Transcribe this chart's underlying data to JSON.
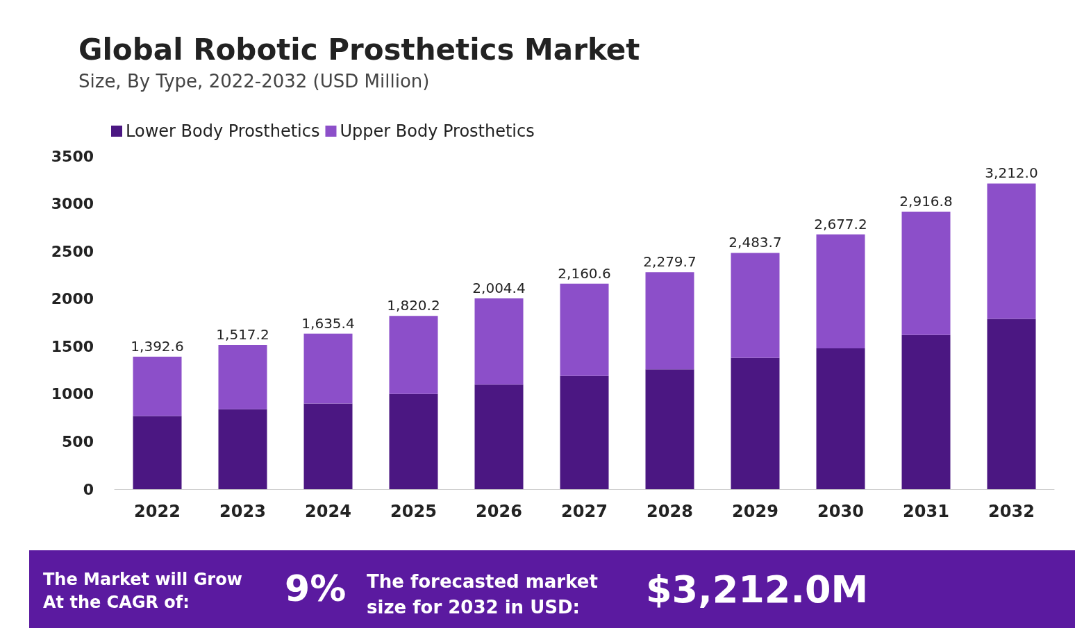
{
  "chart_data": {
    "type": "bar",
    "title": "Global Robotic Prosthetics Market",
    "subtitle": "Size, By Type, 2022-2032 (USD Million)",
    "categories": [
      "2022",
      "2023",
      "2024",
      "2025",
      "2026",
      "2027",
      "2028",
      "2029",
      "2030",
      "2031",
      "2032"
    ],
    "series": [
      {
        "name": "Lower Body Prosthetics",
        "color": "#4b1782",
        "values": [
          770,
          840,
          900,
          1000,
          1100,
          1190,
          1260,
          1380,
          1480,
          1620,
          1790
        ]
      },
      {
        "name": "Upper Body Prosthetics",
        "color": "#8c4fc9",
        "values": [
          622.6,
          677.2,
          735.4,
          820.2,
          904.4,
          970.6,
          1019.7,
          1103.7,
          1197.2,
          1296.8,
          1422.0
        ]
      }
    ],
    "stacked": true,
    "totals": [
      "1,392.6",
      "1,517.2",
      "1,635.4",
      "1,820.2",
      "2,004.4",
      "2,160.6",
      "2,279.7",
      "2,483.7",
      "2,677.2",
      "2,916.8",
      "3,212.0"
    ],
    "ylim": [
      0,
      3500
    ],
    "yticks": [
      0,
      500,
      1000,
      1500,
      2000,
      2500,
      3000,
      3500
    ],
    "grid": false,
    "legend": "top left",
    "annotations": [
      "The Market will Grow At the CAGR of:",
      "9%",
      "The forecasted market size for 2032 in USD:",
      "$3,212.0M"
    ]
  }
}
